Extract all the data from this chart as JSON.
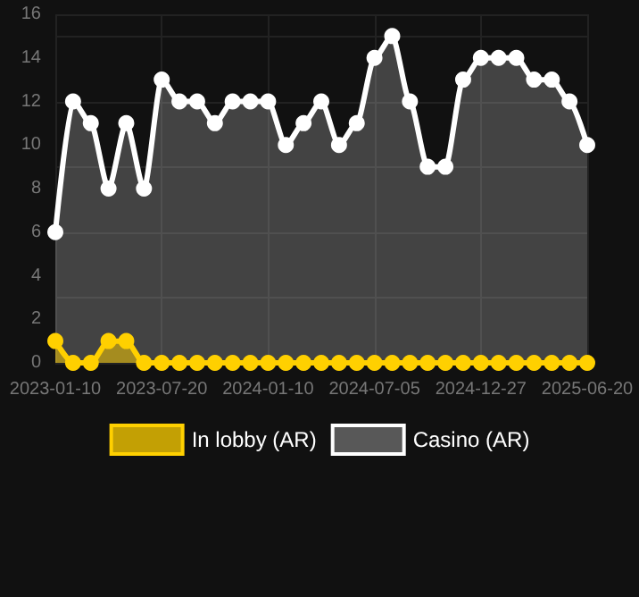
{
  "chart_data": {
    "type": "area",
    "categories": [
      "2023-01-10",
      null,
      null,
      null,
      null,
      null,
      "2023-07-20",
      null,
      null,
      null,
      null,
      null,
      "2024-01-10",
      null,
      null,
      null,
      null,
      null,
      "2024-07-05",
      null,
      null,
      null,
      null,
      null,
      "2024-12-27",
      null,
      null,
      null,
      null,
      null,
      "2025-06-20"
    ],
    "series": [
      {
        "name": "In lobby (AR)",
        "color": "#ffd000",
        "values": [
          1,
          0,
          0,
          1,
          1,
          0,
          0,
          0,
          0,
          0,
          0,
          0,
          0,
          0,
          0,
          0,
          0,
          0,
          0,
          0,
          0,
          0,
          0,
          0,
          0,
          0,
          0,
          0,
          0,
          0,
          0
        ]
      },
      {
        "name": "Casino (AR)",
        "color": "#ffffff",
        "values": [
          6,
          12,
          11,
          8,
          11,
          8,
          13,
          12,
          12,
          11,
          12,
          12,
          12,
          10,
          11,
          12,
          10,
          11,
          14,
          15,
          12,
          9,
          9,
          13,
          14,
          14,
          14,
          13,
          13,
          12,
          10
        ]
      }
    ],
    "ylim": [
      0,
      16
    ],
    "yticks": [
      0,
      2,
      4,
      6,
      8,
      10,
      12,
      14,
      16
    ],
    "grid": true,
    "legend": "bottom",
    "marker": "circle",
    "line_style": "solid"
  }
}
